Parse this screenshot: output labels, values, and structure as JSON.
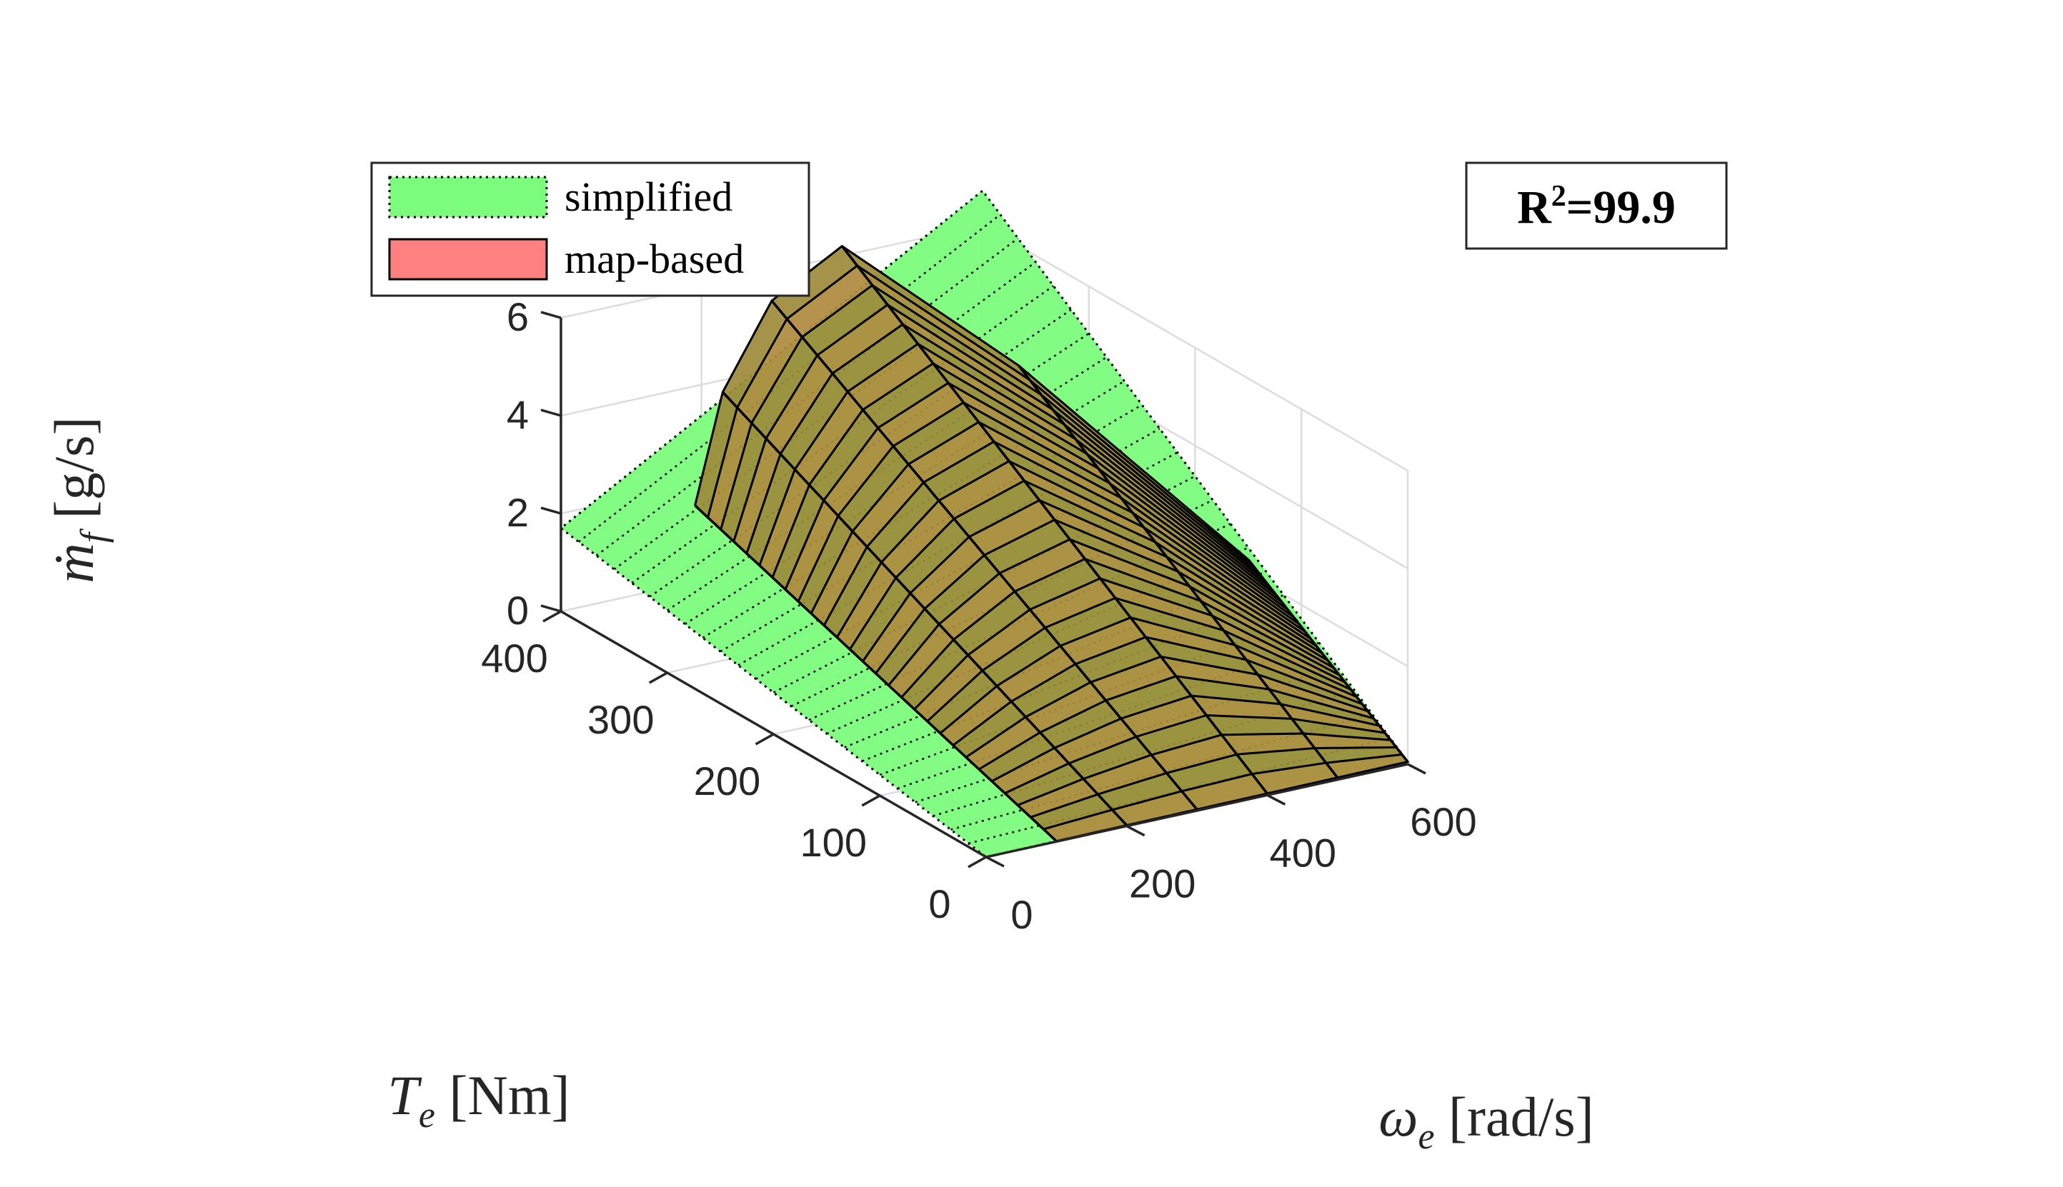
{
  "chart_data": {
    "type": "surface",
    "xlabel": {
      "sym": "ω",
      "sub": "e",
      "unit": " [rad/s]"
    },
    "ylabel": {
      "sym": "T",
      "sub": "e",
      "unit": " [Nm]"
    },
    "zlabel": {
      "sym": "ṁ",
      "sub": "f",
      "unit": " [g/s]"
    },
    "x_ticks": [
      "0",
      "200",
      "400",
      "600"
    ],
    "y_ticks": [
      "0",
      "100",
      "200",
      "300",
      "400"
    ],
    "z_ticks": [
      "0",
      "2",
      "4",
      "6"
    ],
    "xlim": [
      0,
      600
    ],
    "ylim": [
      0,
      400
    ],
    "zlim": [
      0,
      6
    ],
    "grid": true,
    "legend": {
      "placement": "top-left",
      "entries": [
        {
          "label": "simplified",
          "color": "#7CFC7C",
          "edge": "dotted"
        },
        {
          "label": "map-based",
          "color": "#FF8080",
          "edge": "solid"
        }
      ]
    },
    "annotation": {
      "prefix": "R",
      "sup": "2",
      "suffix": "=99.9"
    },
    "series": [
      {
        "name": "simplified",
        "description_model": "linear plane",
        "z_at_corners": {
          "x0_y0": 0.0,
          "x600_y0": 0.05,
          "x0_y400": 1.7,
          "x600_y400": 6.7
        }
      },
      {
        "name": "map-based",
        "max_torque_curve": {
          "omega": [
            100,
            200,
            300,
            400,
            500,
            600
          ],
          "torque": [
            340,
            380,
            400,
            400,
            300,
            150
          ]
        },
        "z_at_envelope": [
          2.6,
          4.1,
          5.4,
          6.2,
          4.7,
          2.3
        ]
      }
    ],
    "colors": {
      "simplified": "#7CFC7C",
      "map_based": "#FF8080",
      "overlap": "#B08A3E"
    }
  }
}
